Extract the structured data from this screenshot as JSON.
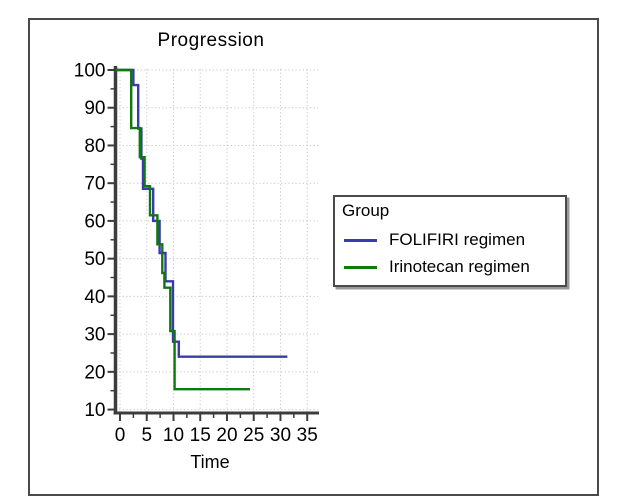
{
  "window": {
    "background": "#ffffff",
    "frame_border_color": "#4a4a4a"
  },
  "chart_data": {
    "type": "line",
    "subtype": "kaplan-meier-step",
    "title": "Progression",
    "xlabel": "Time",
    "ylabel": "",
    "xlim": [
      0,
      35
    ],
    "ylim": [
      10,
      100
    ],
    "x_ticks": [
      0,
      5,
      10,
      15,
      20,
      25,
      30,
      35
    ],
    "y_ticks": [
      10,
      20,
      30,
      40,
      50,
      60,
      70,
      80,
      90,
      100
    ],
    "grid": true,
    "grid_style": "dotted",
    "grid_color": "#c6c6c6",
    "axis_color": "#3c3c3c",
    "legend": {
      "title": "Group",
      "position": "right-of-plot"
    },
    "series": [
      {
        "name": "FOLIFIRI regimen",
        "color": "#3a3aad",
        "points": [
          [
            0,
            100
          ],
          [
            2.5,
            100
          ],
          [
            2.5,
            96
          ],
          [
            3.4,
            96
          ],
          [
            3.4,
            84.5
          ],
          [
            4.0,
            84.5
          ],
          [
            4.0,
            76.5
          ],
          [
            4.3,
            76.5
          ],
          [
            4.3,
            68.5
          ],
          [
            6.2,
            68.5
          ],
          [
            6.2,
            60
          ],
          [
            7.4,
            60
          ],
          [
            7.4,
            51.5
          ],
          [
            8.5,
            51.5
          ],
          [
            8.5,
            44
          ],
          [
            9.9,
            44
          ],
          [
            9.9,
            28
          ],
          [
            11.0,
            28
          ],
          [
            11.0,
            24
          ],
          [
            31.3,
            24
          ]
        ]
      },
      {
        "name": "Irinotecan regimen",
        "color": "#0e7a0e",
        "points": [
          [
            0,
            100
          ],
          [
            2.1,
            100
          ],
          [
            2.1,
            84.6
          ],
          [
            3.7,
            84.6
          ],
          [
            3.7,
            76.9
          ],
          [
            4.6,
            76.9
          ],
          [
            4.6,
            69.2
          ],
          [
            5.6,
            69.2
          ],
          [
            5.6,
            61.5
          ],
          [
            7.0,
            61.5
          ],
          [
            7.0,
            53.8
          ],
          [
            7.9,
            53.8
          ],
          [
            7.9,
            46.2
          ],
          [
            8.3,
            46.2
          ],
          [
            8.3,
            42.3
          ],
          [
            9.4,
            42.3
          ],
          [
            9.4,
            30.8
          ],
          [
            10.2,
            30.8
          ],
          [
            10.2,
            15.4
          ],
          [
            24.3,
            15.4
          ]
        ]
      }
    ]
  }
}
